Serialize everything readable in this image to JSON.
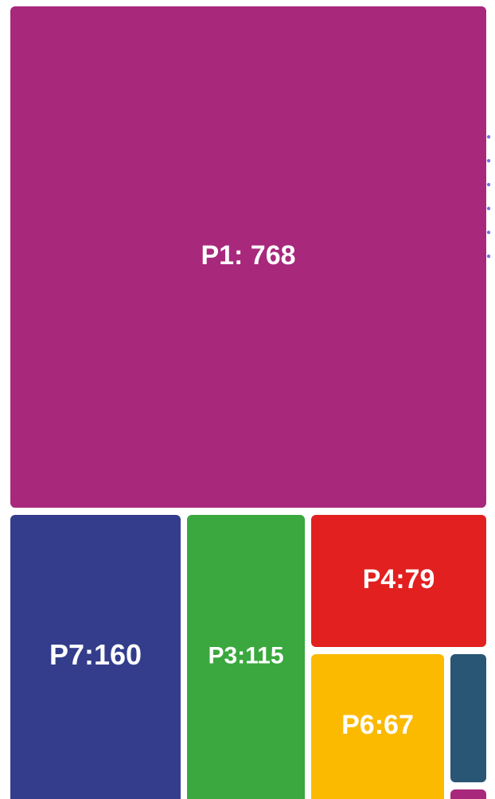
{
  "chart_data": {
    "type": "treemap",
    "categories": [
      "P1",
      "P7",
      "P3",
      "P4",
      "P6",
      null,
      null
    ],
    "values": [
      768,
      160,
      115,
      79,
      67,
      15,
      3
    ],
    "value_labels": [
      "P1: 768",
      "P7:160",
      "P3:115",
      "P4:79",
      "P6:67",
      null,
      null
    ],
    "colors": [
      "#a8287c",
      "#333d8b",
      "#3aa83e",
      "#e2201f",
      "#fbb900",
      "#285674",
      "#a8287c"
    ]
  }
}
